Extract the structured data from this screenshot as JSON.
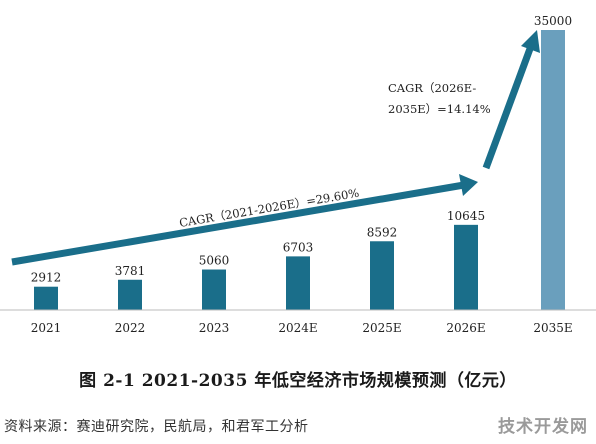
{
  "chart_data": {
    "type": "bar",
    "categories": [
      "2021",
      "2022",
      "2023",
      "2024E",
      "2025E",
      "2026E",
      "2035E"
    ],
    "values": [
      2912,
      3781,
      5060,
      6703,
      8592,
      10645,
      35000
    ],
    "data_labels": [
      "2912",
      "3781",
      "5060",
      "6703",
      "8592",
      "10645",
      "35000"
    ],
    "ylim": [
      0,
      36000
    ],
    "grid": false,
    "legend": "none",
    "annotations": {
      "cagr_1": "CAGR（2021-2026E）=29.60%",
      "cagr_2_line1": "CAGR（2026E-",
      "cagr_2_line2": "2035E）=14.14%"
    },
    "colors": {
      "bar": "#1a6e8a",
      "bar_highlight": "#6a9fbd",
      "arrow": "#1a6e8a"
    }
  },
  "caption": "图 2-1 2021-2035 年低空经济市场规模预测（亿元）",
  "source": "资料来源：赛迪研究院，民航局，和君军工分析",
  "watermark": "技术开发网"
}
